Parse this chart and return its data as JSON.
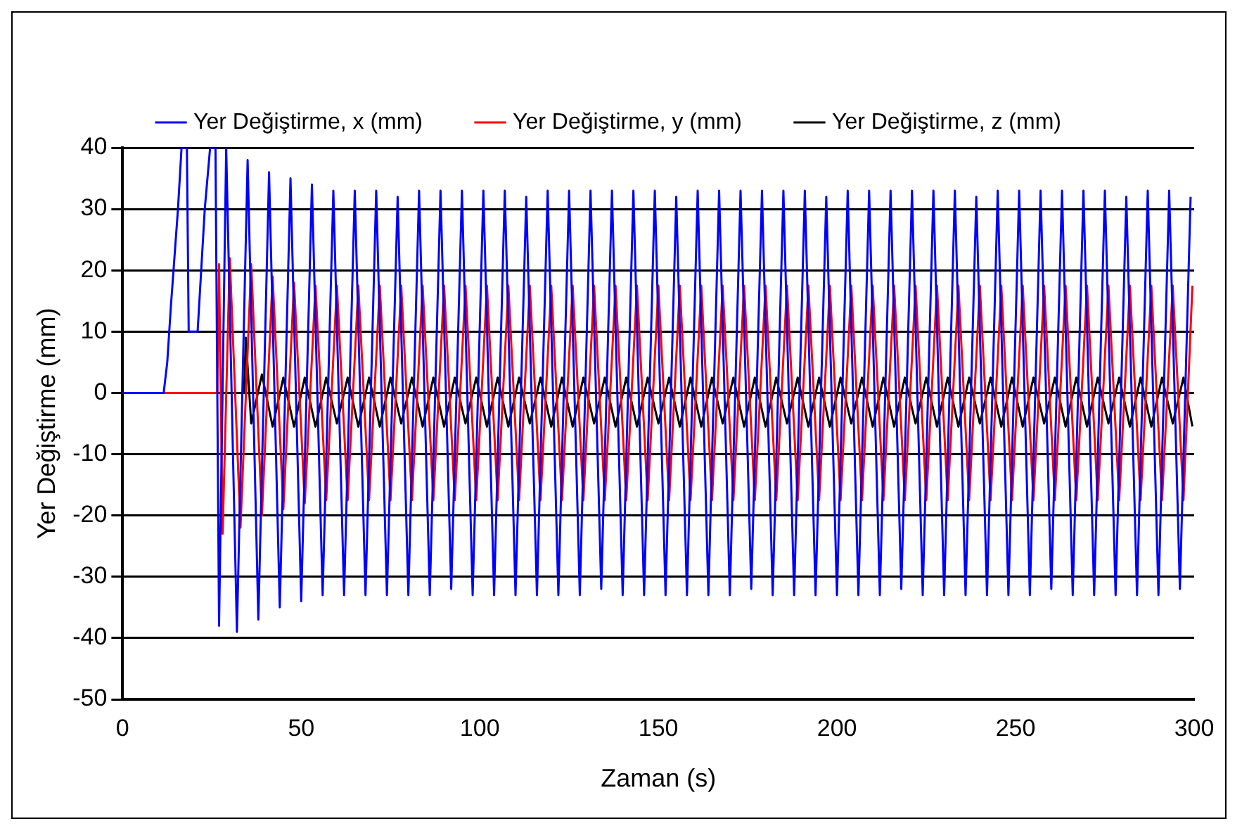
{
  "chart_data": {
    "type": "line",
    "xlabel": "Zaman (s)",
    "ylabel": "Yer Değiştirme (mm)",
    "xlim": [
      0,
      300
    ],
    "xticks": [
      0,
      50,
      100,
      150,
      200,
      250,
      300
    ],
    "ylim": [
      -50,
      40
    ],
    "yticks": [
      -50,
      -40,
      -30,
      -20,
      -10,
      0,
      10,
      20,
      30,
      40
    ],
    "grid": "y",
    "legend": "top",
    "series": [
      {
        "name": "Yer Değiştirme, x (mm)",
        "color": "#0000ff",
        "x": [
          0,
          11.5,
          12.5,
          13.5,
          14.5,
          15.5,
          16.5,
          18,
          18.5,
          21,
          22,
          23,
          24.5,
          26,
          27,
          29,
          32,
          35,
          38,
          41,
          44,
          47,
          50,
          53,
          56,
          59,
          62,
          65,
          68,
          71,
          74,
          77,
          80,
          83,
          86,
          89,
          92,
          95,
          98,
          101,
          104,
          107,
          110,
          113,
          116,
          119,
          122,
          125,
          128,
          131,
          134,
          137,
          140,
          143,
          146,
          149,
          152,
          155,
          158,
          161,
          164,
          167,
          170,
          173,
          176,
          179,
          182,
          185,
          188,
          191,
          194,
          197,
          200,
          203,
          206,
          209,
          212,
          215,
          218,
          221,
          224,
          227,
          230,
          233,
          236,
          239,
          242,
          245,
          248,
          251,
          254,
          257,
          260,
          263,
          266,
          269,
          272,
          275,
          278,
          281,
          284,
          287,
          290,
          293,
          296,
          299
        ],
        "values": [
          0,
          0,
          5,
          14,
          22,
          30,
          40,
          40,
          10,
          10,
          20,
          30,
          40,
          40,
          -38,
          40,
          -39,
          38,
          -37,
          36,
          -35,
          35,
          -34,
          34,
          -33,
          33,
          -33,
          33,
          -33,
          33,
          -33,
          32,
          -33,
          33,
          -33,
          33,
          -32,
          33,
          -33,
          33,
          -33,
          33,
          -33,
          32,
          -33,
          33,
          -33,
          33,
          -33,
          33,
          -32,
          33,
          -33,
          33,
          -33,
          33,
          -33,
          32,
          -33,
          33,
          -33,
          33,
          -33,
          33,
          -32,
          33,
          -33,
          33,
          -33,
          33,
          -33,
          32,
          -33,
          33,
          -33,
          33,
          -33,
          33,
          -32,
          33,
          -33,
          33,
          -33,
          33,
          -33,
          32,
          -33,
          33,
          -33,
          33,
          -33,
          33,
          -32,
          33,
          -33,
          33,
          -33,
          33,
          -33,
          32,
          -33,
          33,
          -33,
          33,
          -32,
          32
        ]
      },
      {
        "name": "Yer Değiştirme, y (mm)",
        "color": "#ff0000",
        "x": [
          0,
          26.5,
          27,
          28,
          30,
          33,
          36,
          39,
          42,
          45,
          48,
          51,
          54,
          57,
          60,
          63,
          66,
          69,
          72,
          75,
          78,
          81,
          84,
          87,
          90,
          93,
          96,
          99,
          102,
          105,
          108,
          111,
          114,
          117,
          120,
          123,
          126,
          129,
          132,
          135,
          138,
          141,
          144,
          147,
          150,
          153,
          156,
          159,
          162,
          165,
          168,
          171,
          174,
          177,
          180,
          183,
          186,
          189,
          192,
          195,
          198,
          201,
          204,
          207,
          210,
          213,
          216,
          219,
          222,
          225,
          228,
          231,
          234,
          237,
          240,
          243,
          246,
          249,
          252,
          255,
          258,
          261,
          264,
          267,
          270,
          273,
          276,
          279,
          282,
          285,
          288,
          291,
          294,
          297,
          299.5
        ],
        "values": [
          0,
          0,
          21,
          -23,
          22,
          -22,
          21,
          -20,
          19,
          -19,
          18,
          -18,
          17.5,
          -17.5,
          17.5,
          -17.5,
          17.5,
          -17.5,
          17.5,
          -17.5,
          17.5,
          -17.5,
          17.5,
          -17.5,
          17.5,
          -17.5,
          17.5,
          -17.5,
          17.5,
          -17.5,
          17.5,
          -17.5,
          17.5,
          -17.5,
          17.5,
          -17.5,
          17.5,
          -17.5,
          17.5,
          -17.5,
          17.5,
          -17.5,
          17.5,
          -17.5,
          17.5,
          -17.5,
          17.5,
          -17.5,
          17.5,
          -17.5,
          17.5,
          -17.5,
          17.5,
          -17.5,
          17.5,
          -17.5,
          17.5,
          -17.5,
          17.5,
          -17.5,
          17.5,
          -17.5,
          17.5,
          -17.5,
          17.5,
          -17.5,
          17.5,
          -17.5,
          17.5,
          -17.5,
          17.5,
          -17.5,
          17.5,
          -17.5,
          17.5,
          -17.5,
          17.5,
          -17.5,
          17.5,
          -17.5,
          17.5,
          -17.5,
          17.5,
          -17.5,
          17.5,
          -17.5,
          17.5,
          -17.5,
          17.5,
          -17.5,
          17.5,
          -17.5,
          17.5,
          -17.5,
          17.5
        ]
      },
      {
        "name": "Yer Değiştirme, z (mm)",
        "color": "#000000",
        "x": [
          0,
          34,
          34.5,
          36,
          39,
          42,
          45,
          48,
          51,
          54,
          57,
          60,
          63,
          66,
          69,
          72,
          75,
          78,
          81,
          84,
          87,
          90,
          93,
          96,
          99,
          102,
          105,
          108,
          111,
          114,
          117,
          120,
          123,
          126,
          129,
          132,
          135,
          138,
          141,
          144,
          147,
          150,
          153,
          156,
          159,
          162,
          165,
          168,
          171,
          174,
          177,
          180,
          183,
          186,
          189,
          192,
          195,
          198,
          201,
          204,
          207,
          210,
          213,
          216,
          219,
          222,
          225,
          228,
          231,
          234,
          237,
          240,
          243,
          246,
          249,
          252,
          255,
          258,
          261,
          264,
          267,
          270,
          273,
          276,
          279,
          282,
          285,
          288,
          291,
          294,
          297,
          299.5
        ],
        "values": [
          0,
          0,
          9,
          -5,
          3,
          -5.5,
          2.5,
          -5.5,
          2.5,
          -5.5,
          2.5,
          -5,
          2.5,
          -5.5,
          2.5,
          -5.5,
          2.5,
          -5,
          2.5,
          -5.5,
          2.5,
          -5.5,
          2.5,
          -5,
          2.5,
          -5.5,
          2.5,
          -5.5,
          2.5,
          -5,
          2.5,
          -5.5,
          2.5,
          -5.5,
          2.5,
          -5,
          2.5,
          -5.5,
          2.5,
          -5.5,
          2.5,
          -5,
          2.5,
          -5.5,
          2.5,
          -5.5,
          2.5,
          -5,
          2.5,
          -5.5,
          2.5,
          -5.5,
          2.5,
          -5,
          2.5,
          -5.5,
          2.5,
          -5.5,
          2.5,
          -5,
          2.5,
          -5.5,
          2.5,
          -5.5,
          2.5,
          -5,
          2.5,
          -5.5,
          2.5,
          -5.5,
          2.5,
          -5,
          2.5,
          -5.5,
          2.5,
          -5.5,
          2.5,
          -5,
          2.5,
          -5.5,
          2.5,
          -5.5,
          2.5,
          -5,
          2.5,
          -5.5,
          2.5,
          -5.5,
          2.5,
          -5,
          2.5,
          -5.5
        ]
      }
    ]
  }
}
